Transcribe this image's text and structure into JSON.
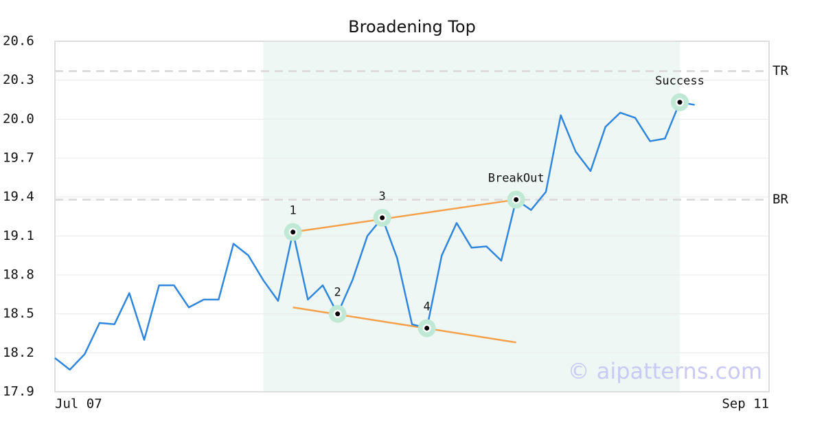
{
  "chart_data": {
    "type": "line",
    "title": "Broadening Top",
    "x": [
      0,
      1,
      2,
      3,
      4,
      5,
      6,
      7,
      8,
      9,
      10,
      11,
      12,
      13,
      14,
      15,
      16,
      17,
      18,
      19,
      20,
      21,
      22,
      23,
      24,
      25,
      26,
      27,
      28,
      29,
      30,
      31,
      32,
      33,
      34,
      35,
      36,
      37,
      38,
      39,
      40,
      41,
      42,
      43
    ],
    "series": [
      {
        "color": "#2e86de",
        "values": [
          18.16,
          18.07,
          18.19,
          18.43,
          18.42,
          18.66,
          18.3,
          18.72,
          18.72,
          18.55,
          18.61,
          18.61,
          19.04,
          18.95,
          18.76,
          18.6,
          19.13,
          18.61,
          18.72,
          18.5,
          18.76,
          19.1,
          19.24,
          18.93,
          18.42,
          18.39,
          18.95,
          19.2,
          19.01,
          19.02,
          18.91,
          19.38,
          19.3,
          19.44,
          20.03,
          19.75,
          19.6,
          19.94,
          20.05,
          20.01,
          19.83,
          19.85,
          20.13,
          20.11
        ]
      }
    ],
    "xlim": [
      0,
      48
    ],
    "xticks": [
      {
        "value": 0,
        "label": "Jul 07"
      },
      {
        "value": 48,
        "label": "Sep 11"
      }
    ],
    "ylim": [
      17.9,
      20.6
    ],
    "yticks": [
      17.9,
      18.2,
      18.5,
      18.8,
      19.1,
      19.4,
      19.7,
      {
        "value": 20,
        "label": "20.0"
      },
      20.3,
      20.6
    ],
    "grid": true,
    "shaded_region": {
      "x": [
        14,
        42
      ],
      "color": "#eef7f3"
    },
    "levels": [
      {
        "label": "TR",
        "value": 20.37
      },
      {
        "label": "BR",
        "value": 19.38
      }
    ],
    "trendlines": [
      {
        "x": [
          16,
          31
        ],
        "values": [
          19.13,
          19.38
        ],
        "color": "#f5a04a"
      },
      {
        "x": [
          16,
          31
        ],
        "values": [
          18.55,
          18.28
        ],
        "color": "#f5a04a"
      }
    ],
    "annotations": [
      {
        "label": "1",
        "index": 16
      },
      {
        "label": "2",
        "index": 19
      },
      {
        "label": "3",
        "index": 22
      },
      {
        "label": "4",
        "index": 25
      },
      {
        "label": "BreakOut",
        "index": 31
      },
      {
        "label": "Success",
        "index": 42
      }
    ],
    "watermark": "© aipatterns.com"
  }
}
